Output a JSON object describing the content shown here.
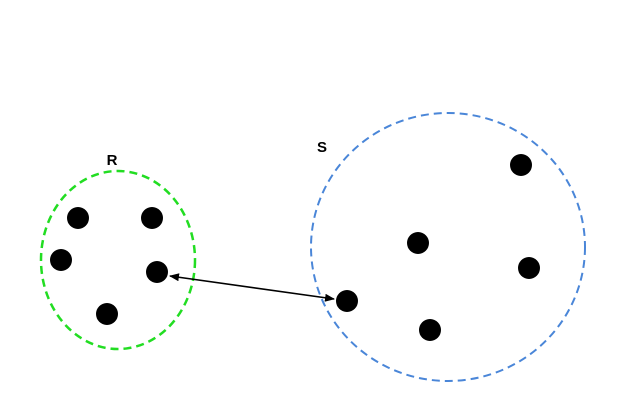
{
  "diagram": {
    "sets": {
      "r": {
        "label": "R",
        "outline_color": "#22dd22",
        "point_count": 5
      },
      "s": {
        "label": "S",
        "outline_color": "#4a86d8",
        "point_count": 5
      }
    },
    "point_color": "#000000",
    "connector": {
      "type": "double-headed-arrow",
      "from": "R",
      "to": "S",
      "color": "#000000"
    }
  }
}
